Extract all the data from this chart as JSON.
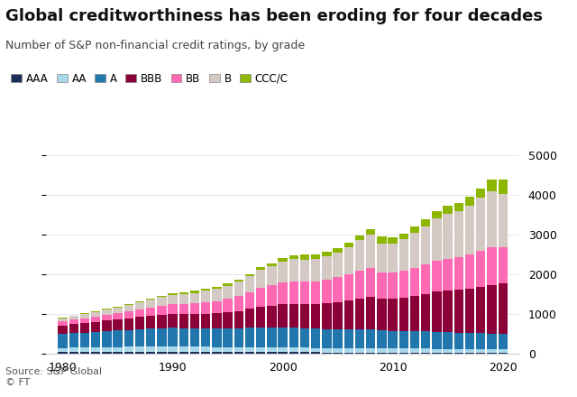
{
  "title": "Global creditworthiness has been eroding for four decades",
  "subtitle": "Number of S&P non-financial credit ratings, by grade",
  "source": "Source: S&P Global\n© FT",
  "years": [
    1980,
    1981,
    1982,
    1983,
    1984,
    1985,
    1986,
    1987,
    1988,
    1989,
    1990,
    1991,
    1992,
    1993,
    1994,
    1995,
    1996,
    1997,
    1998,
    1999,
    2000,
    2001,
    2002,
    2003,
    2004,
    2005,
    2006,
    2007,
    2008,
    2009,
    2010,
    2011,
    2012,
    2013,
    2014,
    2015,
    2016,
    2017,
    2018,
    2019,
    2020
  ],
  "grades": [
    "AAA",
    "AA",
    "A",
    "BBB",
    "BB",
    "B",
    "CCC/C"
  ],
  "colors": [
    "#1a2e5a",
    "#a8d8ea",
    "#2176ae",
    "#8b0038",
    "#ff69b4",
    "#d4c9c3",
    "#8db600"
  ],
  "data": {
    "AAA": [
      35,
      35,
      36,
      36,
      37,
      37,
      37,
      37,
      38,
      38,
      38,
      37,
      36,
      35,
      34,
      33,
      33,
      32,
      31,
      30,
      29,
      28,
      27,
      26,
      25,
      24,
      22,
      21,
      20,
      19,
      18,
      17,
      17,
      16,
      15,
      14,
      13,
      13,
      12,
      11,
      10
    ],
    "AA": [
      100,
      105,
      110,
      115,
      118,
      122,
      125,
      128,
      130,
      132,
      135,
      132,
      130,
      128,
      125,
      123,
      123,
      125,
      127,
      125,
      122,
      118,
      114,
      112,
      110,
      108,
      108,
      110,
      112,
      108,
      105,
      103,
      102,
      100,
      98,
      95,
      92,
      90,
      88,
      86,
      85
    ],
    "A": [
      350,
      365,
      375,
      390,
      405,
      415,
      430,
      445,
      455,
      465,
      470,
      465,
      460,
      458,
      460,
      468,
      475,
      488,
      500,
      500,
      510,
      505,
      495,
      485,
      478,
      472,
      472,
      475,
      480,
      455,
      445,
      440,
      438,
      435,
      432,
      428,
      418,
      412,
      407,
      402,
      396
    ],
    "BBB": [
      210,
      225,
      235,
      248,
      262,
      278,
      295,
      310,
      328,
      342,
      355,
      360,
      368,
      380,
      395,
      415,
      438,
      475,
      515,
      548,
      578,
      598,
      612,
      628,
      658,
      688,
      728,
      778,
      820,
      788,
      808,
      838,
      888,
      948,
      1008,
      1038,
      1078,
      1120,
      1168,
      1218,
      1265
    ],
    "BB": [
      105,
      115,
      125,
      135,
      145,
      158,
      172,
      188,
      205,
      222,
      238,
      248,
      265,
      285,
      305,
      335,
      375,
      425,
      478,
      510,
      538,
      558,
      558,
      568,
      590,
      620,
      660,
      700,
      722,
      660,
      655,
      675,
      705,
      738,
      778,
      808,
      828,
      860,
      910,
      952,
      918
    ],
    "B": [
      85,
      95,
      108,
      118,
      130,
      142,
      158,
      175,
      195,
      215,
      235,
      248,
      265,
      285,
      305,
      328,
      358,
      398,
      450,
      490,
      530,
      560,
      558,
      558,
      580,
      622,
      682,
      762,
      842,
      740,
      740,
      800,
      882,
      962,
      1075,
      1125,
      1145,
      1225,
      1328,
      1408,
      1345
    ],
    "CCC/C": [
      12,
      14,
      15,
      17,
      19,
      22,
      27,
      32,
      37,
      42,
      48,
      50,
      53,
      57,
      60,
      60,
      57,
      57,
      62,
      67,
      82,
      103,
      123,
      122,
      112,
      112,
      118,
      122,
      132,
      182,
      162,
      152,
      162,
      167,
      172,
      202,
      222,
      232,
      242,
      292,
      352
    ]
  },
  "ylim": [
    0,
    5200
  ],
  "yticks": [
    0,
    1000,
    2000,
    3000,
    4000,
    5000
  ],
  "background_color": "#ffffff",
  "grid_color": "#e8e8e8",
  "title_fontsize": 13,
  "subtitle_fontsize": 9,
  "tick_fontsize": 9,
  "legend_fontsize": 8.5,
  "source_fontsize": 8
}
